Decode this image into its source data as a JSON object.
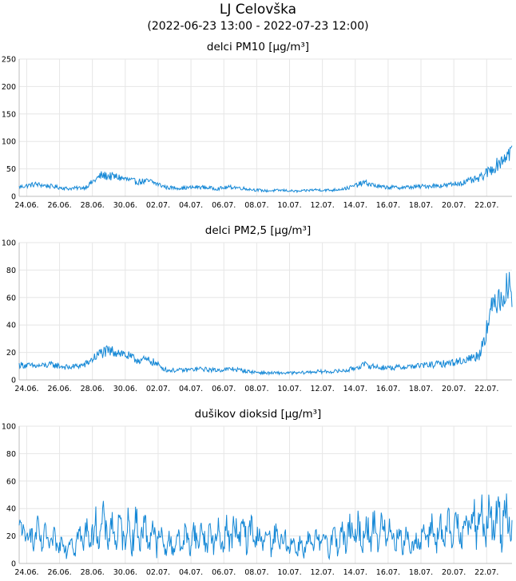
{
  "header": {
    "title": "LJ Celovška",
    "subtitle": "(2022-06-23 13:00 - 2022-07-23 12:00)"
  },
  "colors": {
    "line": "#1588d6",
    "grid": "#e6e6e6",
    "axis": "#bdbdbd"
  },
  "chart_data": [
    {
      "type": "line",
      "title": "delci PM10 [µg/m³]",
      "ylim": [
        0,
        250
      ],
      "yticks": [
        "0",
        "50",
        "100",
        "150",
        "200",
        "250"
      ],
      "xticks": [
        "24.06.",
        "26.06.",
        "28.06.",
        "30.06.",
        "02.07.",
        "04.07.",
        "06.07.",
        "08.07.",
        "10.07.",
        "12.07.",
        "14.07.",
        "16.07.",
        "18.07.",
        "20.07.",
        "22.07."
      ],
      "grid": true,
      "x": [
        "06-23",
        "06-24",
        "06-25",
        "06-26",
        "06-27",
        "06-28",
        "06-29",
        "06-30",
        "07-01",
        "07-02",
        "07-03",
        "07-04",
        "07-05",
        "07-06",
        "07-07",
        "07-08",
        "07-09",
        "07-10",
        "07-11",
        "07-12",
        "07-13",
        "07-14",
        "07-15",
        "07-16",
        "07-17",
        "07-18",
        "07-19",
        "07-20",
        "07-21",
        "07-22",
        "07-23"
      ],
      "values": [
        17,
        22,
        18,
        14,
        16,
        38,
        35,
        27,
        27,
        16,
        15,
        17,
        14,
        17,
        13,
        10,
        11,
        9,
        12,
        11,
        15,
        25,
        17,
        16,
        17,
        19,
        20,
        25,
        32,
        55,
        85
      ]
    },
    {
      "type": "line",
      "title": "delci PM2,5 [µg/m³]",
      "ylim": [
        0,
        100
      ],
      "yticks": [
        "0",
        "20",
        "40",
        "60",
        "80",
        "100"
      ],
      "xticks": [
        "24.06.",
        "26.06.",
        "28.06.",
        "30.06.",
        "02.07.",
        "04.07.",
        "06.07.",
        "08.07.",
        "10.07.",
        "12.07.",
        "14.07.",
        "16.07.",
        "18.07.",
        "20.07.",
        "22.07."
      ],
      "grid": true,
      "x": [
        "06-23",
        "06-24",
        "06-25",
        "06-26",
        "06-27",
        "06-28",
        "06-29",
        "06-30",
        "07-01",
        "07-02",
        "07-03",
        "07-04",
        "07-05",
        "07-06",
        "07-07",
        "07-08",
        "07-09",
        "07-10",
        "07-11",
        "07-12",
        "07-13",
        "07-14",
        "07-15",
        "07-16",
        "07-17",
        "07-18",
        "07-19",
        "07-20",
        "07-21",
        "07-22",
        "07-23"
      ],
      "values": [
        11,
        10,
        11,
        9,
        11,
        20,
        21,
        15,
        14,
        7,
        7,
        8,
        7,
        8,
        6,
        5,
        5,
        5,
        6,
        6,
        7,
        11,
        9,
        9,
        10,
        11,
        12,
        14,
        18,
        60,
        68
      ]
    },
    {
      "type": "line",
      "title": "dušikov dioksid [µg/m³]",
      "ylim": [
        0,
        100
      ],
      "yticks": [
        "0",
        "20",
        "40",
        "60",
        "80",
        "100"
      ],
      "xticks": [
        "24.06.",
        "26.06.",
        "28.06.",
        "30.06.",
        "02.07.",
        "04.07.",
        "06.07.",
        "08.07.",
        "10.07.",
        "12.07.",
        "14.07.",
        "16.07.",
        "18.07.",
        "20.07.",
        "22.07."
      ],
      "grid": true,
      "x": [
        "06-23",
        "06-24",
        "06-25",
        "06-26",
        "06-27",
        "06-28",
        "06-29",
        "06-30",
        "07-01",
        "07-02",
        "07-03",
        "07-04",
        "07-05",
        "07-06",
        "07-07",
        "07-08",
        "07-09",
        "07-10",
        "07-11",
        "07-12",
        "07-13",
        "07-14",
        "07-15",
        "07-16",
        "07-17",
        "07-18",
        "07-19",
        "07-20",
        "07-21",
        "07-22",
        "07-23"
      ],
      "values": [
        22,
        20,
        15,
        14,
        20,
        26,
        22,
        24,
        22,
        13,
        17,
        20,
        18,
        22,
        22,
        17,
        17,
        12,
        15,
        17,
        20,
        23,
        24,
        20,
        14,
        22,
        22,
        28,
        30,
        30,
        38
      ]
    }
  ]
}
